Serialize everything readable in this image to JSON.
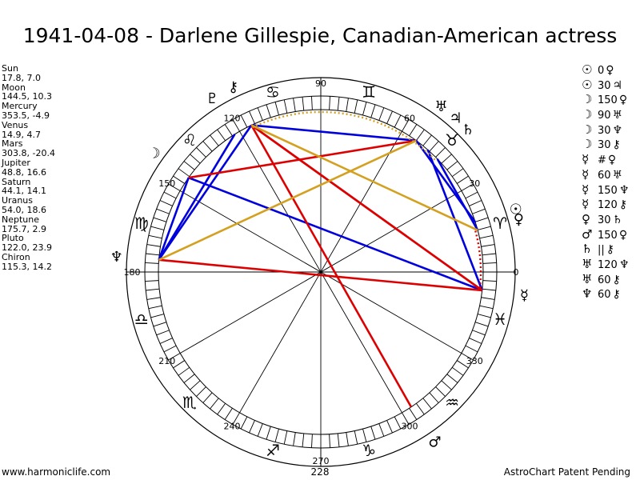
{
  "title": "1941-04-08 - Darlene Gillespie, Canadian-American actress",
  "positions": [
    {
      "name": "Sun",
      "value": "17.8, 7.0"
    },
    {
      "name": "Moon",
      "value": "144.5, 10.3"
    },
    {
      "name": "Mercury",
      "value": "353.5, -4.9"
    },
    {
      "name": "Venus",
      "value": "14.9, 4.7"
    },
    {
      "name": "Mars",
      "value": "303.8, -20.4"
    },
    {
      "name": "Jupiter",
      "value": "48.8, 16.6"
    },
    {
      "name": "Saturn",
      "value": "44.1, 14.1"
    },
    {
      "name": "Uranus",
      "value": "54.0, 18.6"
    },
    {
      "name": "Neptune",
      "value": "175.7, 2.9"
    },
    {
      "name": "Pluto",
      "value": "122.0, 23.9"
    },
    {
      "name": "Chiron",
      "value": "115.3, 14.2"
    }
  ],
  "aspects": [
    {
      "a": "☉",
      "deg": "0",
      "b": "♀"
    },
    {
      "a": "☉",
      "deg": "30",
      "b": "♃"
    },
    {
      "a": "☽",
      "deg": "150",
      "b": "♀"
    },
    {
      "a": "☽",
      "deg": "90",
      "b": "♅"
    },
    {
      "a": "☽",
      "deg": "30",
      "b": "♆"
    },
    {
      "a": "☽",
      "deg": "30",
      "b": "⚷"
    },
    {
      "a": "☿",
      "deg": "#",
      "b": "♀"
    },
    {
      "a": "☿",
      "deg": "60",
      "b": "♅"
    },
    {
      "a": "☿",
      "deg": "150",
      "b": "♆"
    },
    {
      "a": "☿",
      "deg": "120",
      "b": "⚷"
    },
    {
      "a": "♀",
      "deg": "30",
      "b": "♄"
    },
    {
      "a": "♂",
      "deg": "150",
      "b": "♀"
    },
    {
      "a": "♄",
      "deg": "||",
      "b": "⚷"
    },
    {
      "a": "♅",
      "deg": "120",
      "b": "♆"
    },
    {
      "a": "♅",
      "deg": "60",
      "b": "⚷"
    },
    {
      "a": "♆",
      "deg": "60",
      "b": "⚷"
    }
  ],
  "chart": {
    "degree_labels": [
      "0",
      "30",
      "60",
      "90",
      "120",
      "150",
      "180",
      "210",
      "240",
      "270",
      "300",
      "330"
    ],
    "extra_label": "228",
    "signs": [
      "♈",
      "♉",
      "♊",
      "♋",
      "♌",
      "♍",
      "♎",
      "♏",
      "♐",
      "♑",
      "♒",
      "♓"
    ],
    "planets": [
      {
        "key": "sun",
        "glyph": "☉",
        "lon": 17.8,
        "decl": 7.0
      },
      {
        "key": "moon",
        "glyph": "☽",
        "lon": 144.5,
        "decl": 10.3
      },
      {
        "key": "mercury",
        "glyph": "☿",
        "lon": 353.5,
        "decl": -4.9
      },
      {
        "key": "venus",
        "glyph": "♀",
        "lon": 14.9,
        "decl": 4.7
      },
      {
        "key": "mars",
        "glyph": "♂",
        "lon": 303.8,
        "decl": -20.4
      },
      {
        "key": "jupiter",
        "glyph": "♃",
        "lon": 48.8,
        "decl": 16.6
      },
      {
        "key": "saturn",
        "glyph": "♄",
        "lon": 44.1,
        "decl": 14.1
      },
      {
        "key": "uranus",
        "glyph": "♅",
        "lon": 54.0,
        "decl": 18.6
      },
      {
        "key": "neptune",
        "glyph": "♆",
        "lon": 175.7,
        "decl": 2.9
      },
      {
        "key": "pluto",
        "glyph": "♇",
        "lon": 122.0,
        "decl": 23.9
      },
      {
        "key": "chiron",
        "glyph": "⚷",
        "lon": 115.3,
        "decl": 14.2
      }
    ],
    "aspect_lines": [
      {
        "from": "mercury",
        "to": "jupiter",
        "color": "#0000dd"
      },
      {
        "from": "mercury",
        "to": "moon",
        "color": "#0000dd"
      },
      {
        "from": "moon",
        "to": "neptune",
        "color": "#0000dd"
      },
      {
        "from": "neptune",
        "to": "chiron",
        "color": "#0000dd"
      },
      {
        "from": "neptune",
        "to": "pluto",
        "color": "#0000dd"
      },
      {
        "from": "chiron",
        "to": "uranus",
        "color": "#0000dd"
      },
      {
        "from": "uranus",
        "to": "sun",
        "color": "#0000dd"
      },
      {
        "from": "saturn",
        "to": "venus",
        "color": "#0000dd"
      },
      {
        "from": "moon",
        "to": "uranus",
        "color": "#dd0000"
      },
      {
        "from": "neptune",
        "to": "mercury",
        "color": "#dd0000"
      },
      {
        "from": "mercury",
        "to": "chiron",
        "color": "#dd0000"
      },
      {
        "from": "chiron",
        "to": "mars",
        "color": "#dd0000"
      },
      {
        "from": "chiron",
        "to": "mercury",
        "color": "#dd0000"
      },
      {
        "from": "neptune",
        "to": "uranus",
        "color": "#d4a020"
      },
      {
        "from": "chiron",
        "to": "venus",
        "color": "#d4a020"
      }
    ]
  },
  "footer": {
    "left": "www.harmoniclife.com",
    "right": "AstroChart Patent Pending"
  }
}
